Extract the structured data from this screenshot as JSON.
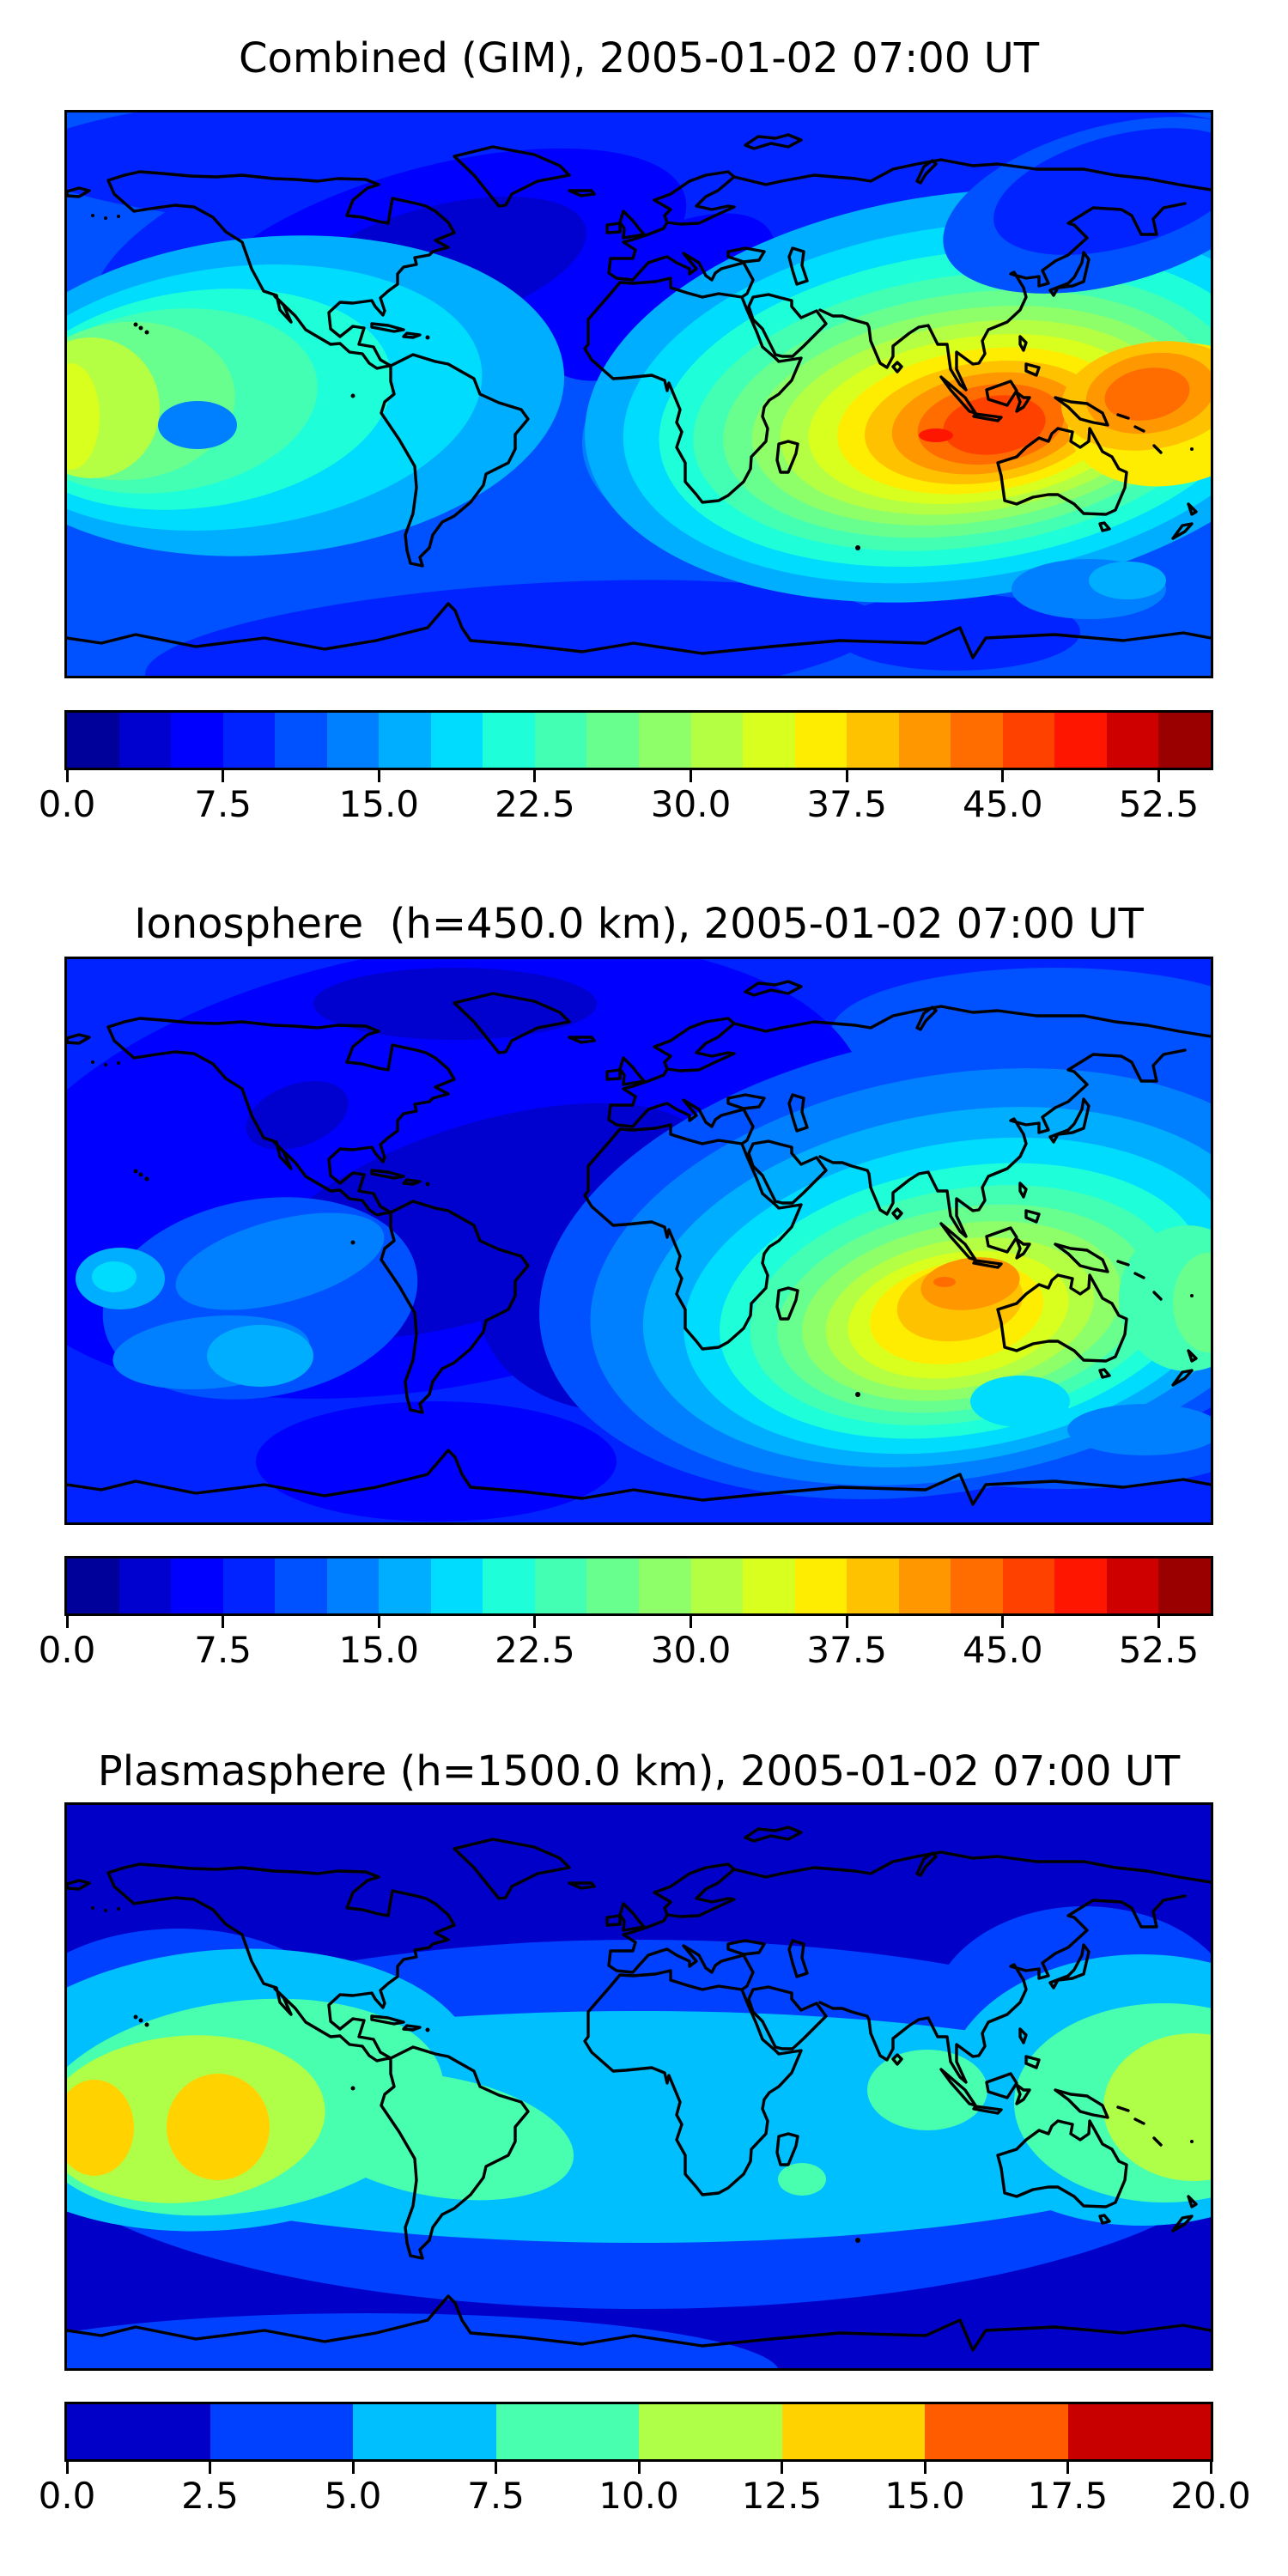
{
  "figure": {
    "background": "#ffffff",
    "panels": [
      {
        "id": "combined",
        "title": "Combined (GIM), 2005-01-02 07:00 UT",
        "colorbar": {
          "vmin": 0,
          "vmax": 55,
          "tick_labels": [
            "0.0",
            "7.5",
            "15.0",
            "22.5",
            "30.0",
            "37.5",
            "45.0",
            "52.5"
          ],
          "tick_values": [
            0,
            7.5,
            15,
            22.5,
            30,
            37.5,
            45,
            52.5
          ],
          "segment_colors": [
            "#00009A",
            "#0000CF",
            "#0000FF",
            "#0023FF",
            "#0051FF",
            "#0080FF",
            "#00AEFF",
            "#00DCFE",
            "#1EFFD9",
            "#43FFB4",
            "#69FF8E",
            "#8EFF69",
            "#B4FF43",
            "#D9FF1E",
            "#FEED00",
            "#FFC200",
            "#FF9700",
            "#FF6C00",
            "#FF4100",
            "#FF1600",
            "#CF0000",
            "#9A0000"
          ]
        }
      },
      {
        "id": "ionosphere",
        "title": "Ionosphere  (h=450.0 km), 2005-01-02 07:00 UT",
        "colorbar": {
          "vmin": 0,
          "vmax": 55,
          "tick_labels": [
            "0.0",
            "7.5",
            "15.0",
            "22.5",
            "30.0",
            "37.5",
            "45.0",
            "52.5"
          ],
          "tick_values": [
            0,
            7.5,
            15,
            22.5,
            30,
            37.5,
            45,
            52.5
          ],
          "segment_colors": [
            "#00009A",
            "#0000CF",
            "#0000FF",
            "#0023FF",
            "#0051FF",
            "#0080FF",
            "#00AEFF",
            "#00DCFE",
            "#1EFFD9",
            "#43FFB4",
            "#69FF8E",
            "#8EFF69",
            "#B4FF43",
            "#D9FF1E",
            "#FEED00",
            "#FFC200",
            "#FF9700",
            "#FF6C00",
            "#FF4100",
            "#FF1600",
            "#CF0000",
            "#9A0000"
          ]
        }
      },
      {
        "id": "plasmasphere",
        "title": "Plasmasphere (h=1500.0 km), 2005-01-02 07:00 UT",
        "colorbar": {
          "vmin": 0,
          "vmax": 20,
          "tick_labels": [
            "0.0",
            "2.5",
            "5.0",
            "7.5",
            "10.0",
            "12.5",
            "15.0",
            "17.5",
            "20.0"
          ],
          "tick_values": [
            0,
            2.5,
            5,
            7.5,
            10,
            12.5,
            15,
            17.5,
            20
          ],
          "segment_colors": [
            "#0000C8",
            "#0040FF",
            "#00BFFF",
            "#48FFAF",
            "#AFFF48",
            "#FFD200",
            "#FF5C00",
            "#C80000"
          ]
        }
      }
    ]
  },
  "chart_data": [
    {
      "type": "heatmap",
      "subtype": "filled-contour-world-map",
      "title": "Combined (GIM), 2005-01-02 07:00 UT",
      "layer": "Combined (GIM)",
      "datetime_label": "2005-01-02 07:00 UT",
      "projection": "equirectangular",
      "coastlines": true,
      "lon_range": [
        -180,
        180
      ],
      "lat_range": [
        -90,
        90
      ],
      "colormap": "jet",
      "contour_interval": 2.5,
      "colorbar_range": [
        0,
        55
      ],
      "colorbar_ticks": [
        0,
        7.5,
        15,
        22.5,
        30,
        37.5,
        45,
        52.5
      ],
      "legend_position": "bottom",
      "grid_lons": [
        -180,
        -135,
        -90,
        -45,
        0,
        45,
        90,
        135,
        180
      ],
      "grid_lats": [
        90,
        45,
        0,
        -45,
        -90
      ],
      "approx_values": [
        [
          5,
          5,
          4,
          4,
          6,
          8,
          8,
          7,
          5
        ],
        [
          8,
          6,
          4,
          3,
          5,
          10,
          15,
          12,
          9
        ],
        [
          30,
          20,
          11,
          9,
          14,
          32,
          46,
          48,
          38
        ],
        [
          15,
          13,
          10,
          9,
          12,
          18,
          22,
          18,
          16
        ],
        [
          8,
          8,
          8,
          8,
          9,
          9,
          9,
          8,
          8
        ]
      ],
      "hotspots": [
        {
          "lon": 100,
          "lat": -8,
          "value": 48
        },
        {
          "lon": 160,
          "lat": -3,
          "value": 45
        },
        {
          "lon": -172,
          "lat": -8,
          "value": 33
        }
      ]
    },
    {
      "type": "heatmap",
      "subtype": "filled-contour-world-map",
      "title": "Ionosphere  (h=450.0 km), 2005-01-02 07:00 UT",
      "layer": "Ionosphere (h=450.0 km)",
      "datetime_label": "2005-01-02 07:00 UT",
      "projection": "equirectangular",
      "coastlines": true,
      "lon_range": [
        -180,
        180
      ],
      "lat_range": [
        -90,
        90
      ],
      "colormap": "jet",
      "contour_interval": 2.5,
      "colorbar_range": [
        0,
        55
      ],
      "colorbar_ticks": [
        0,
        7.5,
        15,
        22.5,
        30,
        37.5,
        45,
        52.5
      ],
      "legend_position": "bottom",
      "grid_lons": [
        -180,
        -135,
        -90,
        -45,
        0,
        45,
        90,
        135,
        180
      ],
      "grid_lats": [
        90,
        45,
        0,
        -45,
        -90
      ],
      "approx_values": [
        [
          4,
          4,
          3,
          3,
          4,
          6,
          6,
          5,
          4
        ],
        [
          6,
          5,
          3,
          2,
          4,
          8,
          12,
          9,
          7
        ],
        [
          14,
          9,
          6,
          5,
          9,
          22,
          38,
          35,
          22
        ],
        [
          9,
          8,
          6,
          5,
          8,
          13,
          16,
          13,
          11
        ],
        [
          5,
          5,
          5,
          5,
          6,
          6,
          6,
          5,
          5
        ]
      ],
      "hotspots": [
        {
          "lon": 105,
          "lat": -13,
          "value": 40
        }
      ]
    },
    {
      "type": "heatmap",
      "subtype": "filled-contour-world-map",
      "title": "Plasmasphere (h=1500.0 km), 2005-01-02 07:00 UT",
      "layer": "Plasmasphere (h=1500.0 km)",
      "datetime_label": "2005-01-02 07:00 UT",
      "projection": "equirectangular",
      "coastlines": true,
      "lon_range": [
        -180,
        180
      ],
      "lat_range": [
        -90,
        90
      ],
      "colormap": "jet",
      "contour_interval": 2.5,
      "colorbar_range": [
        0,
        20
      ],
      "colorbar_ticks": [
        0,
        2.5,
        5,
        7.5,
        10,
        12.5,
        15,
        17.5,
        20
      ],
      "legend_position": "bottom",
      "grid_lons": [
        -180,
        -135,
        -90,
        -45,
        0,
        45,
        90,
        135,
        180
      ],
      "grid_lats": [
        90,
        45,
        0,
        -45,
        -90
      ],
      "approx_values": [
        [
          1,
          1,
          1,
          1,
          1,
          1,
          1,
          1,
          1
        ],
        [
          4,
          3,
          2,
          2,
          2,
          2,
          3,
          4,
          4
        ],
        [
          13,
          12,
          7,
          6,
          6,
          7,
          9,
          8,
          12
        ],
        [
          5,
          4,
          3,
          3,
          3,
          4,
          4,
          5,
          5
        ],
        [
          1,
          1,
          1,
          1,
          1,
          1,
          1,
          1,
          1
        ]
      ],
      "hotspots": [
        {
          "lon": -172,
          "lat": -13,
          "value": 14
        },
        {
          "lon": -133,
          "lat": -13,
          "value": 14
        }
      ]
    }
  ]
}
